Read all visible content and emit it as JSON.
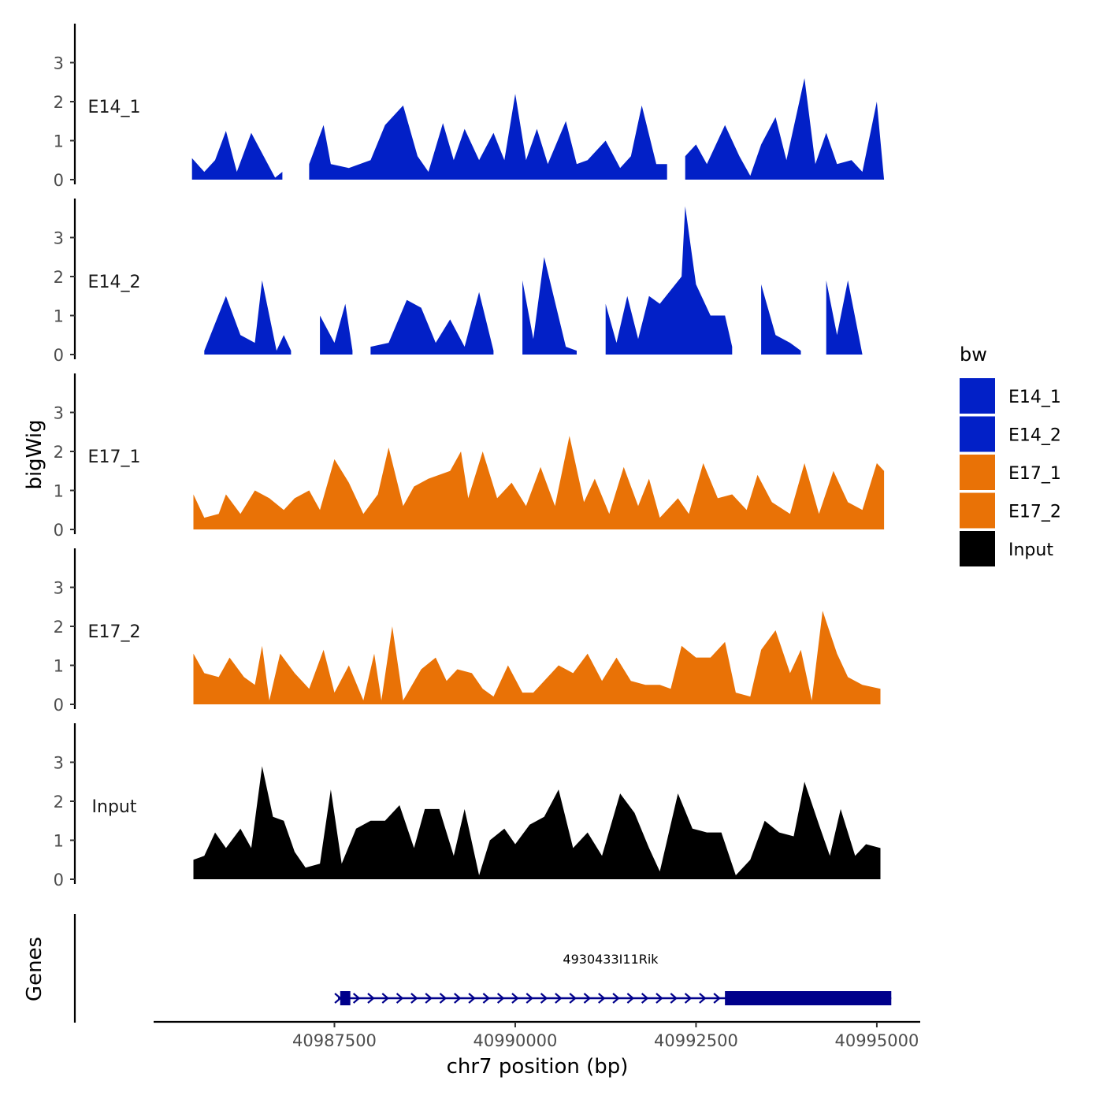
{
  "chart_data": {
    "type": "area",
    "title": "",
    "xlabel": "chr7 position (bp)",
    "ylabel": "bigWig",
    "genes_label": "Genes",
    "xlim": [
      40985000,
      40995600
    ],
    "ylim": [
      0,
      3.9
    ],
    "x_ticks": [
      40987500,
      40990000,
      40992500,
      40995000
    ],
    "x_tick_labels": [
      "40987500",
      "40990000",
      "40992500",
      "40995000"
    ],
    "y_ticks": [
      0,
      1,
      2,
      3
    ],
    "y_tick_labels": [
      "0",
      "1",
      "2",
      "3"
    ],
    "legend": {
      "title": "bw",
      "position": "right",
      "entries": [
        {
          "label": "E14_1",
          "color": "#0220C7"
        },
        {
          "label": "E14_2",
          "color": "#0220C7"
        },
        {
          "label": "E17_1",
          "color": "#E97206"
        },
        {
          "label": "E17_2",
          "color": "#E97206"
        },
        {
          "label": "Input",
          "color": "#000000"
        }
      ]
    },
    "series": [
      {
        "name": "E14_1",
        "color": "#0220C7",
        "peaks": [
          [
            40985530,
            0.55
          ],
          [
            40985700,
            0.2
          ],
          [
            40985850,
            0.5
          ],
          [
            40986000,
            1.25
          ],
          [
            40986150,
            0.2
          ],
          [
            40986350,
            1.2
          ],
          [
            40986550,
            0.5
          ],
          [
            40986680,
            0.05
          ],
          [
            40986780,
            0.2
          ],
          [
            40986900,
            null
          ],
          [
            40987150,
            0.4
          ],
          [
            40987350,
            1.4
          ],
          [
            40987450,
            0.4
          ],
          [
            40987700,
            0.3
          ],
          [
            40988000,
            0.5
          ],
          [
            40988200,
            1.4
          ],
          [
            40988450,
            1.9
          ],
          [
            40988650,
            0.6
          ],
          [
            40988800,
            0.2
          ],
          [
            40989000,
            1.45
          ],
          [
            40989150,
            0.5
          ],
          [
            40989300,
            1.3
          ],
          [
            40989500,
            0.5
          ],
          [
            40989700,
            1.2
          ],
          [
            40989850,
            0.5
          ],
          [
            40990000,
            2.2
          ],
          [
            40990150,
            0.5
          ],
          [
            40990300,
            1.3
          ],
          [
            40990450,
            0.4
          ],
          [
            40990700,
            1.5
          ],
          [
            40990850,
            0.4
          ],
          [
            40991000,
            0.5
          ],
          [
            40991250,
            1.0
          ],
          [
            40991450,
            0.3
          ],
          [
            40991600,
            0.6
          ],
          [
            40991750,
            1.9
          ],
          [
            40991950,
            0.4
          ],
          [
            40992100,
            0.4
          ],
          [
            40992250,
            null
          ],
          [
            40992350,
            0.6
          ],
          [
            40992500,
            0.9
          ],
          [
            40992650,
            0.4
          ],
          [
            40992900,
            1.4
          ],
          [
            40993100,
            0.6
          ],
          [
            40993250,
            0.1
          ],
          [
            40993400,
            0.9
          ],
          [
            40993600,
            1.6
          ],
          [
            40993750,
            0.5
          ],
          [
            40994000,
            2.6
          ],
          [
            40994150,
            0.4
          ],
          [
            40994300,
            1.2
          ],
          [
            40994450,
            0.4
          ],
          [
            40994650,
            0.5
          ],
          [
            40994800,
            0.2
          ],
          [
            40995000,
            2.0
          ],
          [
            40995100,
            0
          ]
        ]
      },
      {
        "name": "E14_2",
        "color": "#0220C7",
        "peaks": [
          [
            40985700,
            0.1
          ],
          [
            40986000,
            1.5
          ],
          [
            40986200,
            0.5
          ],
          [
            40986400,
            0.3
          ],
          [
            40986500,
            1.9
          ],
          [
            40986700,
            0.1
          ],
          [
            40986800,
            0.5
          ],
          [
            40986900,
            0.1
          ],
          [
            40987000,
            null
          ],
          [
            40987300,
            1.0
          ],
          [
            40987500,
            0.3
          ],
          [
            40987650,
            1.3
          ],
          [
            40987750,
            0.1
          ],
          [
            40987900,
            null
          ],
          [
            40988000,
            0.2
          ],
          [
            40988250,
            0.3
          ],
          [
            40988500,
            1.4
          ],
          [
            40988700,
            1.2
          ],
          [
            40988900,
            0.3
          ],
          [
            40989100,
            0.9
          ],
          [
            40989300,
            0.2
          ],
          [
            40989500,
            1.6
          ],
          [
            40989700,
            0.1
          ],
          [
            40989850,
            null
          ],
          [
            40990100,
            1.9
          ],
          [
            40990250,
            0.4
          ],
          [
            40990400,
            2.5
          ],
          [
            40990700,
            0.2
          ],
          [
            40990850,
            0.1
          ],
          [
            40990950,
            null
          ],
          [
            40991250,
            1.3
          ],
          [
            40991400,
            0.3
          ],
          [
            40991550,
            1.5
          ],
          [
            40991700,
            0.4
          ],
          [
            40991850,
            1.5
          ],
          [
            40992000,
            1.3
          ],
          [
            40992300,
            2.0
          ],
          [
            40992350,
            3.8
          ],
          [
            40992500,
            1.8
          ],
          [
            40992700,
            1.0
          ],
          [
            40992900,
            1.0
          ],
          [
            40993000,
            0.2
          ],
          [
            40993100,
            null
          ],
          [
            40993400,
            1.8
          ],
          [
            40993600,
            0.5
          ],
          [
            40993800,
            0.3
          ],
          [
            40993950,
            0.1
          ],
          [
            40994100,
            null
          ],
          [
            40994300,
            1.9
          ],
          [
            40994450,
            0.5
          ],
          [
            40994600,
            1.9
          ],
          [
            40994800,
            0
          ]
        ]
      },
      {
        "name": "E17_1",
        "color": "#E97206",
        "peaks": [
          [
            40985550,
            0.9
          ],
          [
            40985700,
            0.3
          ],
          [
            40985900,
            0.4
          ],
          [
            40986000,
            0.9
          ],
          [
            40986200,
            0.4
          ],
          [
            40986400,
            1.0
          ],
          [
            40986600,
            0.8
          ],
          [
            40986800,
            0.5
          ],
          [
            40986950,
            0.8
          ],
          [
            40987150,
            1.0
          ],
          [
            40987300,
            0.5
          ],
          [
            40987500,
            1.8
          ],
          [
            40987700,
            1.2
          ],
          [
            40987900,
            0.4
          ],
          [
            40988100,
            0.9
          ],
          [
            40988250,
            2.1
          ],
          [
            40988450,
            0.6
          ],
          [
            40988600,
            1.1
          ],
          [
            40988800,
            1.3
          ],
          [
            40989100,
            1.5
          ],
          [
            40989250,
            2.0
          ],
          [
            40989350,
            0.8
          ],
          [
            40989550,
            2.0
          ],
          [
            40989750,
            0.8
          ],
          [
            40989950,
            1.2
          ],
          [
            40990150,
            0.6
          ],
          [
            40990350,
            1.6
          ],
          [
            40990550,
            0.6
          ],
          [
            40990750,
            2.4
          ],
          [
            40990950,
            0.7
          ],
          [
            40991100,
            1.3
          ],
          [
            40991300,
            0.4
          ],
          [
            40991500,
            1.6
          ],
          [
            40991700,
            0.6
          ],
          [
            40991850,
            1.3
          ],
          [
            40992000,
            0.3
          ],
          [
            40992250,
            0.8
          ],
          [
            40992400,
            0.4
          ],
          [
            40992600,
            1.7
          ],
          [
            40992800,
            0.8
          ],
          [
            40993000,
            0.9
          ],
          [
            40993200,
            0.5
          ],
          [
            40993350,
            1.4
          ],
          [
            40993550,
            0.7
          ],
          [
            40993800,
            0.4
          ],
          [
            40994000,
            1.7
          ],
          [
            40994200,
            0.4
          ],
          [
            40994400,
            1.5
          ],
          [
            40994600,
            0.7
          ],
          [
            40994800,
            0.5
          ],
          [
            40995000,
            1.7
          ],
          [
            40995100,
            1.5
          ]
        ]
      },
      {
        "name": "E17_2",
        "color": "#E97206",
        "peaks": [
          [
            40985550,
            1.3
          ],
          [
            40985700,
            0.8
          ],
          [
            40985900,
            0.7
          ],
          [
            40986050,
            1.2
          ],
          [
            40986250,
            0.7
          ],
          [
            40986400,
            0.5
          ],
          [
            40986500,
            1.5
          ],
          [
            40986600,
            0.1
          ],
          [
            40986750,
            1.3
          ],
          [
            40986950,
            0.8
          ],
          [
            40987150,
            0.4
          ],
          [
            40987350,
            1.4
          ],
          [
            40987500,
            0.3
          ],
          [
            40987700,
            1.0
          ],
          [
            40987900,
            0.1
          ],
          [
            40988050,
            1.3
          ],
          [
            40988150,
            0.1
          ],
          [
            40988300,
            2.0
          ],
          [
            40988450,
            0.1
          ],
          [
            40988700,
            0.9
          ],
          [
            40988900,
            1.2
          ],
          [
            40989050,
            0.6
          ],
          [
            40989200,
            0.9
          ],
          [
            40989400,
            0.8
          ],
          [
            40989550,
            0.4
          ],
          [
            40989700,
            0.2
          ],
          [
            40989900,
            1.0
          ],
          [
            40990100,
            0.3
          ],
          [
            40990250,
            0.3
          ],
          [
            40990400,
            0.6
          ],
          [
            40990600,
            1.0
          ],
          [
            40990800,
            0.8
          ],
          [
            40991000,
            1.3
          ],
          [
            40991200,
            0.6
          ],
          [
            40991400,
            1.2
          ],
          [
            40991600,
            0.6
          ],
          [
            40991800,
            0.5
          ],
          [
            40992000,
            0.5
          ],
          [
            40992150,
            0.4
          ],
          [
            40992300,
            1.5
          ],
          [
            40992500,
            1.2
          ],
          [
            40992700,
            1.2
          ],
          [
            40992900,
            1.6
          ],
          [
            40993050,
            0.3
          ],
          [
            40993250,
            0.2
          ],
          [
            40993400,
            1.4
          ],
          [
            40993600,
            1.9
          ],
          [
            40993800,
            0.8
          ],
          [
            40993950,
            1.4
          ],
          [
            40994100,
            0.1
          ],
          [
            40994250,
            2.4
          ],
          [
            40994450,
            1.3
          ],
          [
            40994600,
            0.7
          ],
          [
            40994800,
            0.5
          ],
          [
            40995050,
            0.4
          ]
        ]
      },
      {
        "name": "Input",
        "color": "#000000",
        "peaks": [
          [
            40985550,
            0.5
          ],
          [
            40985700,
            0.6
          ],
          [
            40985850,
            1.2
          ],
          [
            40986000,
            0.8
          ],
          [
            40986200,
            1.3
          ],
          [
            40986350,
            0.8
          ],
          [
            40986500,
            2.9
          ],
          [
            40986650,
            1.6
          ],
          [
            40986800,
            1.5
          ],
          [
            40986950,
            0.7
          ],
          [
            40987100,
            0.3
          ],
          [
            40987300,
            0.4
          ],
          [
            40987450,
            2.3
          ],
          [
            40987600,
            0.4
          ],
          [
            40987800,
            1.3
          ],
          [
            40988000,
            1.5
          ],
          [
            40988200,
            1.5
          ],
          [
            40988400,
            1.9
          ],
          [
            40988600,
            0.8
          ],
          [
            40988750,
            1.8
          ],
          [
            40988950,
            1.8
          ],
          [
            40989150,
            0.6
          ],
          [
            40989300,
            1.8
          ],
          [
            40989500,
            0.1
          ],
          [
            40989650,
            1.0
          ],
          [
            40989850,
            1.3
          ],
          [
            40990000,
            0.9
          ],
          [
            40990200,
            1.4
          ],
          [
            40990400,
            1.6
          ],
          [
            40990600,
            2.3
          ],
          [
            40990800,
            0.8
          ],
          [
            40991000,
            1.2
          ],
          [
            40991200,
            0.6
          ],
          [
            40991450,
            2.2
          ],
          [
            40991650,
            1.7
          ],
          [
            40991850,
            0.8
          ],
          [
            40992000,
            0.2
          ],
          [
            40992250,
            2.2
          ],
          [
            40992450,
            1.3
          ],
          [
            40992650,
            1.2
          ],
          [
            40992850,
            1.2
          ],
          [
            40993050,
            0.1
          ],
          [
            40993250,
            0.5
          ],
          [
            40993450,
            1.5
          ],
          [
            40993650,
            1.2
          ],
          [
            40993850,
            1.1
          ],
          [
            40994000,
            2.5
          ],
          [
            40994200,
            1.4
          ],
          [
            40994350,
            0.6
          ],
          [
            40994500,
            1.8
          ],
          [
            40994700,
            0.6
          ],
          [
            40994850,
            0.9
          ],
          [
            40995050,
            0.8
          ]
        ]
      }
    ],
    "genes": [
      {
        "name": "4930433I11Rik",
        "strand": "+",
        "start": 40987550,
        "end": 40995200,
        "exons": [
          [
            40987580,
            40987720
          ],
          [
            40992900,
            40995200
          ]
        ]
      }
    ]
  }
}
